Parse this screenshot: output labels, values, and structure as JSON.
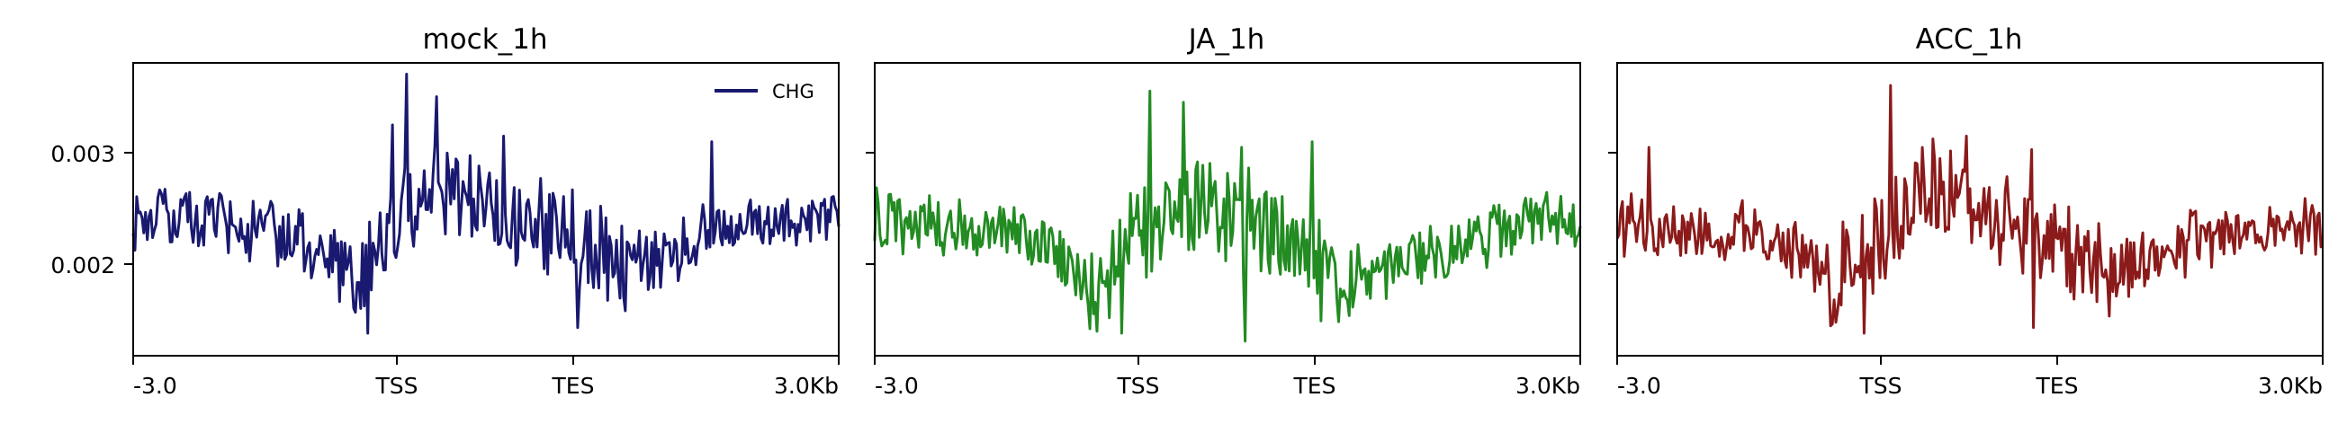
{
  "chart_data": [
    {
      "type": "line",
      "title": "mock_1h",
      "x_tick_labels": [
        "-3.0",
        "TSS",
        "TES",
        "3.0Kb"
      ],
      "y_tick_labels": [
        "0.002",
        "0.003"
      ],
      "y_ticks": [
        0.002,
        0.003
      ],
      "ylim": [
        0.00115,
        0.00375
      ],
      "legend": {
        "entries": [
          "CHG"
        ],
        "placement": "top-right"
      },
      "series": [
        {
          "name": "CHG",
          "color": "#191970",
          "x": [
            0,
            25,
            50,
            75,
            100,
            125,
            150,
            175,
            200,
            225,
            250,
            275,
            300,
            325,
            350,
            375,
            400
          ],
          "values": [
            0.00238,
            0.00235,
            0.00232,
            0.00226,
            0.00212,
            0.00182,
            0.00232,
            0.00268,
            0.00248,
            0.00236,
            0.00218,
            0.00197,
            0.00202,
            0.00222,
            0.0023,
            0.00237,
            0.0024
          ],
          "peaks": [
            {
              "x": 155,
              "value": 0.00365
            },
            {
              "x": 147,
              "value": 0.0032
            },
            {
              "x": 172,
              "value": 0.00345
            },
            {
              "x": 210,
              "value": 0.0031
            },
            {
              "x": 133,
              "value": 0.00135
            },
            {
              "x": 252,
              "value": 0.0014
            },
            {
              "x": 328,
              "value": 0.00305
            }
          ]
        }
      ]
    },
    {
      "type": "line",
      "title": "JA_1h",
      "x_tick_labels": [
        "-3.0",
        "TSS",
        "TES",
        "3.0Kb"
      ],
      "y_ticks": [
        0.002,
        0.003
      ],
      "ylim": [
        0.00115,
        0.00375
      ],
      "series": [
        {
          "color": "#228B22",
          "x": [
            0,
            25,
            50,
            75,
            100,
            125,
            150,
            175,
            200,
            225,
            250,
            275,
            300,
            325,
            350,
            375,
            400
          ],
          "values": [
            0.00236,
            0.00233,
            0.0023,
            0.00225,
            0.00212,
            0.00172,
            0.00228,
            0.0025,
            0.00238,
            0.00226,
            0.00196,
            0.00186,
            0.00196,
            0.0021,
            0.00222,
            0.00232,
            0.00236
          ],
          "peaks": [
            {
              "x": 156,
              "value": 0.0035
            },
            {
              "x": 175,
              "value": 0.0034
            },
            {
              "x": 208,
              "value": 0.003
            },
            {
              "x": 248,
              "value": 0.00305
            },
            {
              "x": 210,
              "value": 0.00128
            },
            {
              "x": 140,
              "value": 0.00135
            }
          ]
        }
      ]
    },
    {
      "type": "line",
      "title": "ACC_1h",
      "x_tick_labels": [
        "-3.0",
        "TSS",
        "TES",
        "3.0Kb"
      ],
      "y_ticks": [
        0.002,
        0.003
      ],
      "ylim": [
        0.00115,
        0.00375
      ],
      "series": [
        {
          "color": "#8B1A1A",
          "x": [
            0,
            25,
            50,
            75,
            100,
            125,
            150,
            175,
            200,
            225,
            250,
            275,
            300,
            325,
            350,
            375,
            400
          ],
          "values": [
            0.00232,
            0.0023,
            0.00228,
            0.00224,
            0.0021,
            0.0018,
            0.00225,
            0.00262,
            0.0025,
            0.00236,
            0.00212,
            0.00192,
            0.002,
            0.00216,
            0.00225,
            0.0023,
            0.00232
          ],
          "peaks": [
            {
              "x": 155,
              "value": 0.00355
            },
            {
              "x": 18,
              "value": 0.003
            },
            {
              "x": 198,
              "value": 0.0031
            },
            {
              "x": 235,
              "value": 0.00298
            },
            {
              "x": 140,
              "value": 0.00135
            },
            {
              "x": 236,
              "value": 0.0014
            }
          ]
        }
      ]
    }
  ]
}
